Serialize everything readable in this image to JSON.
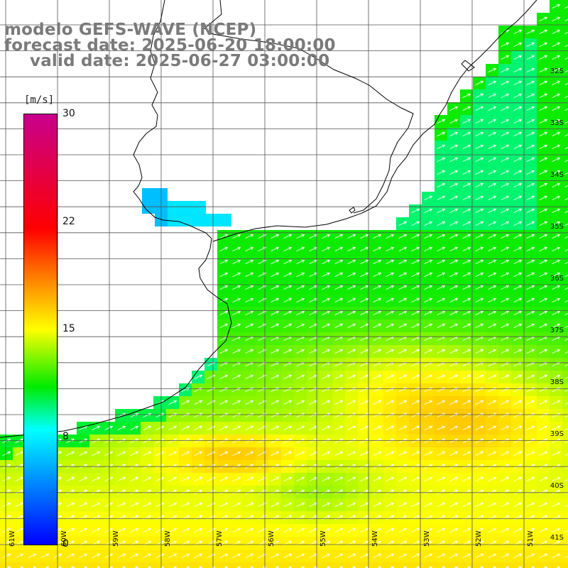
{
  "title": {
    "line1": "modelo GEFS-WAVE (NCEP)",
    "line2": "forecast date: 2025-06-20 18:00:00",
    "line3": "valid date: 2025-06-27 03:00:00"
  },
  "colorbar": {
    "unit": "[m/s]",
    "min": 0,
    "max": 30,
    "ticks": [
      {
        "value": 30,
        "label": "30"
      },
      {
        "value": 22,
        "label": "22"
      },
      {
        "value": 15,
        "label": "15"
      },
      {
        "value": 8,
        "label": "8"
      },
      {
        "value": 0,
        "label": "0"
      }
    ]
  },
  "axes": {
    "lat_labels": [
      "32S",
      "33S",
      "34S",
      "35S",
      "36S",
      "37S",
      "38S",
      "39S",
      "40S",
      "41S"
    ],
    "lon_labels": [
      "61W",
      "60W",
      "59W",
      "58W",
      "57W",
      "56W",
      "55W",
      "54W",
      "53W",
      "52W",
      "51W"
    ]
  },
  "colors": {
    "land": "#ffffff",
    "coastline": "#000000",
    "grid": "#555555",
    "arrows": "#ffffff",
    "title_text": "#7a7a7a"
  }
}
